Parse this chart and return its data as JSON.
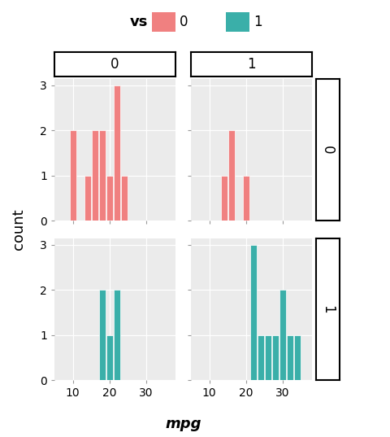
{
  "title": "",
  "xlabel": "mpg",
  "ylabel": "count",
  "legend_title": "vs",
  "facet_col_vals": [
    "0",
    "1"
  ],
  "facet_row_vals": [
    "0",
    "1"
  ],
  "panel_background": "#EBEBEB",
  "fig_background": "#FFFFFF",
  "grid_color": "#FFFFFF",
  "bin_width": 2,
  "xlim": [
    5,
    38
  ],
  "ylim": [
    0,
    3
  ],
  "yticks": [
    0,
    1,
    2,
    3
  ],
  "xticks": [
    10,
    20,
    30
  ],
  "data": {
    "am0_vs0": [
      10.4,
      10.4,
      14.3,
      15.2,
      16.4,
      17.3,
      18.7,
      19.2,
      21.4,
      21.5,
      22.8,
      24.4
    ],
    "am0_vs1": [
      17.8,
      18.1,
      19.2,
      21.4,
      22.8
    ],
    "am1_vs0": [
      15.0,
      15.8,
      13.3,
      19.7
    ],
    "am1_vs1": [
      21.0,
      21.0,
      22.8,
      24.4,
      26.0,
      27.3,
      30.4,
      30.4,
      32.4,
      33.9
    ]
  },
  "color_vs0": "#F08080",
  "color_vs1": "#3AAFA9",
  "legend_color_0": "#F08080",
  "legend_color_1": "#3AAFA9",
  "facet_label_fontsize": 12,
  "axis_label_fontsize": 13,
  "tick_label_fontsize": 10,
  "legend_fontsize": 12,
  "legend_title_fontsize": 13
}
